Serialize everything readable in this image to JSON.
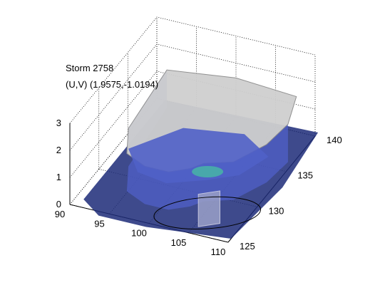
{
  "title_lines": [
    "Storm 2758",
    "(U,V) (1.9575,-1.0194)"
  ],
  "chart_data": {
    "type": "surface3d",
    "view": "3-D isosurface rendering of a storm volume",
    "grid": true,
    "axes": {
      "x": {
        "range": [
          90,
          110
        ],
        "ticks": [
          90,
          95,
          100,
          105,
          110
        ]
      },
      "y": {
        "range": [
          125,
          140
        ],
        "ticks": [
          125,
          130,
          135,
          140
        ]
      },
      "z": {
        "range": [
          0,
          3
        ],
        "ticks": [
          0,
          1,
          2,
          3
        ]
      }
    },
    "features": {
      "base_ellipse": true,
      "colors": {
        "storm_top": "#cfcfcf",
        "storm_wall": "#8c8c8c",
        "interior": "#5060c8",
        "core": "#46c8a0",
        "ground": "#1c2a78"
      }
    }
  }
}
